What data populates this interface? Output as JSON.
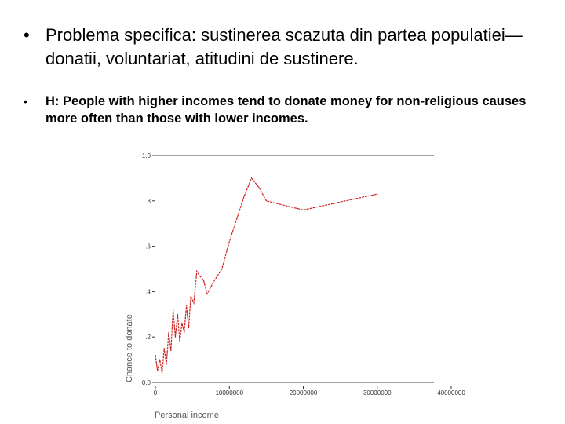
{
  "bullets": [
    {
      "marker": "•",
      "text": "Problema specifica: sustinerea scazuta din partea populatiei—donatii, voluntariat, atitudini de sustinere."
    },
    {
      "marker": "•",
      "text": "H: People with higher incomes tend to donate money for non-religious causes more often than those with lower incomes."
    }
  ],
  "chart_data": {
    "type": "line",
    "xlabel": "Personal income",
    "ylabel": "Chance to donate",
    "xlim": [
      0,
      40000000
    ],
    "ylim": [
      0,
      1
    ],
    "x_ticks": [
      "0",
      "10000000",
      "20000000",
      "30000000",
      "40000000"
    ],
    "y_ticks": [
      "0.0",
      ".2",
      ".4",
      ".6",
      ".8",
      "1.0"
    ],
    "line_color": "#cc2222",
    "series": [
      {
        "x": [
          0,
          300000,
          600000,
          900000,
          1200000,
          1500000,
          1800000,
          2100000,
          2400000,
          2700000,
          3000000,
          3300000,
          3600000,
          3900000,
          4200000,
          4500000,
          4800000,
          5200000,
          5600000,
          6000000,
          6500000,
          7000000,
          8000000,
          9000000,
          10000000,
          11000000,
          12000000,
          13000000,
          14000000,
          15000000,
          20000000,
          30000000
        ],
        "y": [
          0.12,
          0.05,
          0.1,
          0.04,
          0.15,
          0.08,
          0.22,
          0.14,
          0.32,
          0.2,
          0.3,
          0.18,
          0.26,
          0.22,
          0.34,
          0.24,
          0.38,
          0.35,
          0.49,
          0.47,
          0.45,
          0.39,
          0.45,
          0.5,
          0.62,
          0.72,
          0.82,
          0.9,
          0.86,
          0.8,
          0.76,
          0.83
        ]
      }
    ]
  }
}
